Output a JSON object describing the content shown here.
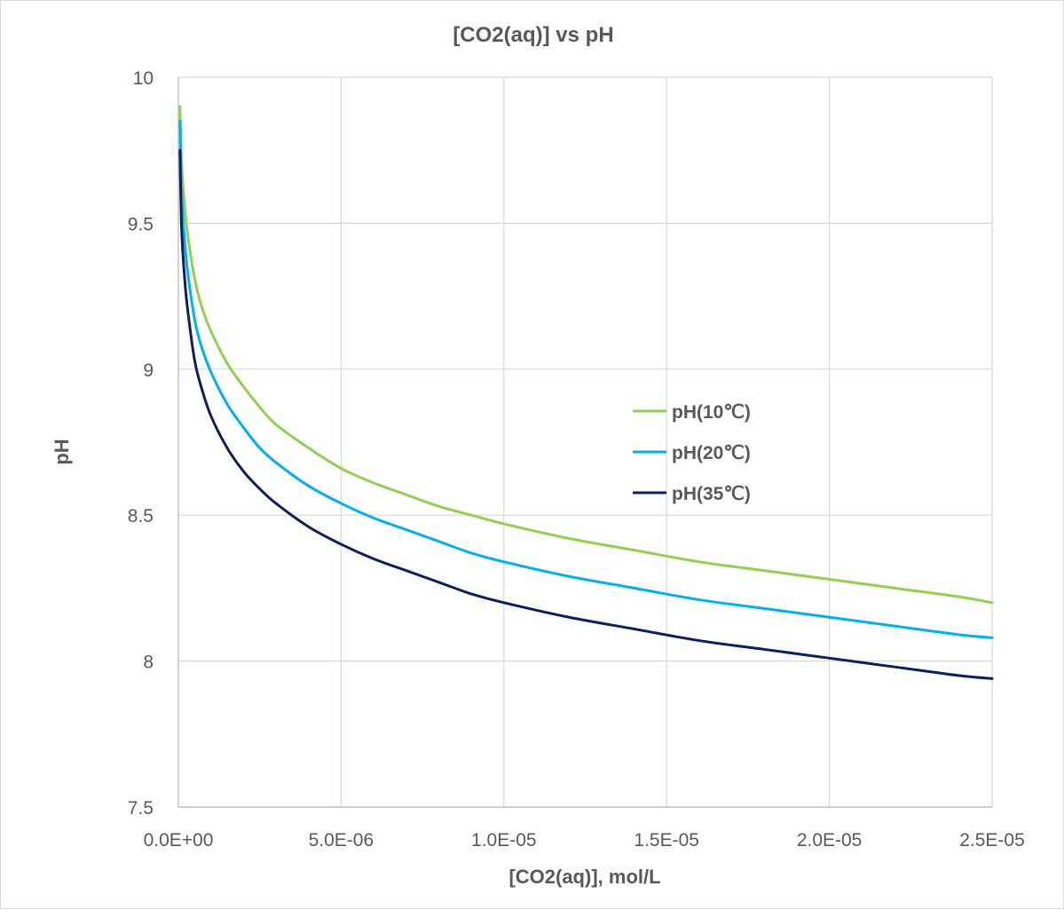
{
  "chart_data": {
    "type": "line",
    "title": "[CO2(aq)] vs pH",
    "xlabel": "[CO2(aq)], mol/L",
    "ylabel": "pH",
    "xlim": [
      0,
      2.5e-05
    ],
    "ylim": [
      7.5,
      10
    ],
    "x_ticks": [
      0,
      5e-06,
      1e-05,
      1.5e-05,
      2e-05,
      2.5e-05
    ],
    "x_tick_labels": [
      "0.0E+00",
      "5.0E-06",
      "1.0E-05",
      "1.5E-05",
      "2.0E-05",
      "2.5E-05"
    ],
    "y_ticks": [
      7.5,
      8,
      8.5,
      9,
      9.5,
      10
    ],
    "y_tick_labels": [
      "7.5",
      "8",
      "8.5",
      "9",
      "9.5",
      "10"
    ],
    "grid": true,
    "legend_position": "center-right",
    "x": [
      5e-08,
      1e-07,
      2e-07,
      3e-07,
      5e-07,
      7e-07,
      1e-06,
      1.5e-06,
      2e-06,
      2.5e-06,
      3e-06,
      4e-06,
      5e-06,
      6e-06,
      7e-06,
      8e-06,
      9e-06,
      1e-05,
      1.2e-05,
      1.4e-05,
      1.6e-05,
      1.8e-05,
      2e-05,
      2.2e-05,
      2.4e-05,
      2.5e-05
    ],
    "series": [
      {
        "name": "pH(10℃)",
        "color": "#92d050",
        "values": [
          9.9,
          9.7,
          9.55,
          9.45,
          9.31,
          9.22,
          9.13,
          9.02,
          8.94,
          8.87,
          8.81,
          8.73,
          8.66,
          8.61,
          8.57,
          8.53,
          8.5,
          8.47,
          8.42,
          8.38,
          8.34,
          8.31,
          8.28,
          8.25,
          8.22,
          8.2
        ]
      },
      {
        "name": "pH(20℃)",
        "color": "#00b0f0",
        "values": [
          9.85,
          9.6,
          9.43,
          9.32,
          9.17,
          9.08,
          8.99,
          8.88,
          8.8,
          8.73,
          8.68,
          8.6,
          8.54,
          8.49,
          8.45,
          8.41,
          8.37,
          8.34,
          8.29,
          8.25,
          8.21,
          8.18,
          8.15,
          8.12,
          8.09,
          8.08
        ]
      },
      {
        "name": "pH(35℃)",
        "color": "#0d1f5c",
        "values": [
          9.75,
          9.48,
          9.3,
          9.19,
          9.03,
          8.94,
          8.84,
          8.73,
          8.65,
          8.59,
          8.54,
          8.46,
          8.4,
          8.35,
          8.31,
          8.27,
          8.23,
          8.2,
          8.15,
          8.11,
          8.07,
          8.04,
          8.01,
          7.98,
          7.95,
          7.94
        ]
      }
    ]
  }
}
